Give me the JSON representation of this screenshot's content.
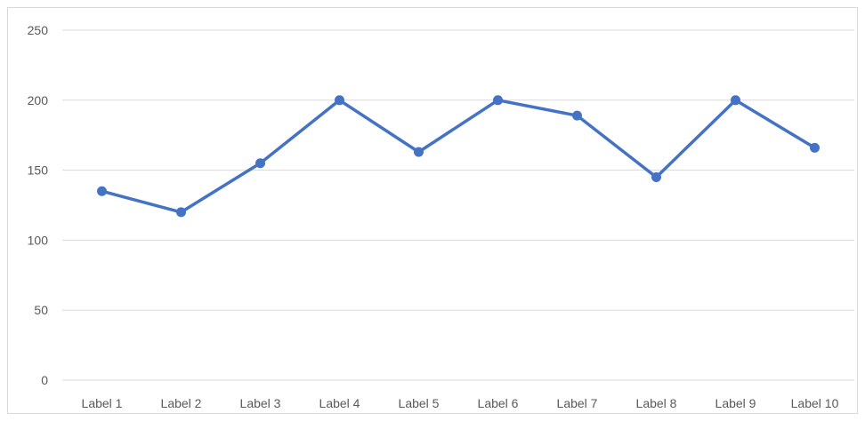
{
  "chart_data": {
    "type": "line",
    "categories": [
      "Label 1",
      "Label 2",
      "Label 3",
      "Label 4",
      "Label 5",
      "Label 6",
      "Label 7",
      "Label 8",
      "Label 9",
      "Label 10"
    ],
    "series": [
      {
        "values": [
          135,
          120,
          155,
          200,
          163,
          200,
          189,
          145,
          200,
          166
        ]
      }
    ],
    "title": "",
    "xlabel": "",
    "ylabel": "",
    "ylim": [
      0,
      250
    ],
    "yticks": [
      "0",
      "50",
      "100",
      "150",
      "200",
      "250"
    ],
    "grid": true,
    "legend": "none",
    "colors": {
      "line": "#4472c4",
      "grid": "#d9d9d9",
      "text": "#595959"
    }
  }
}
